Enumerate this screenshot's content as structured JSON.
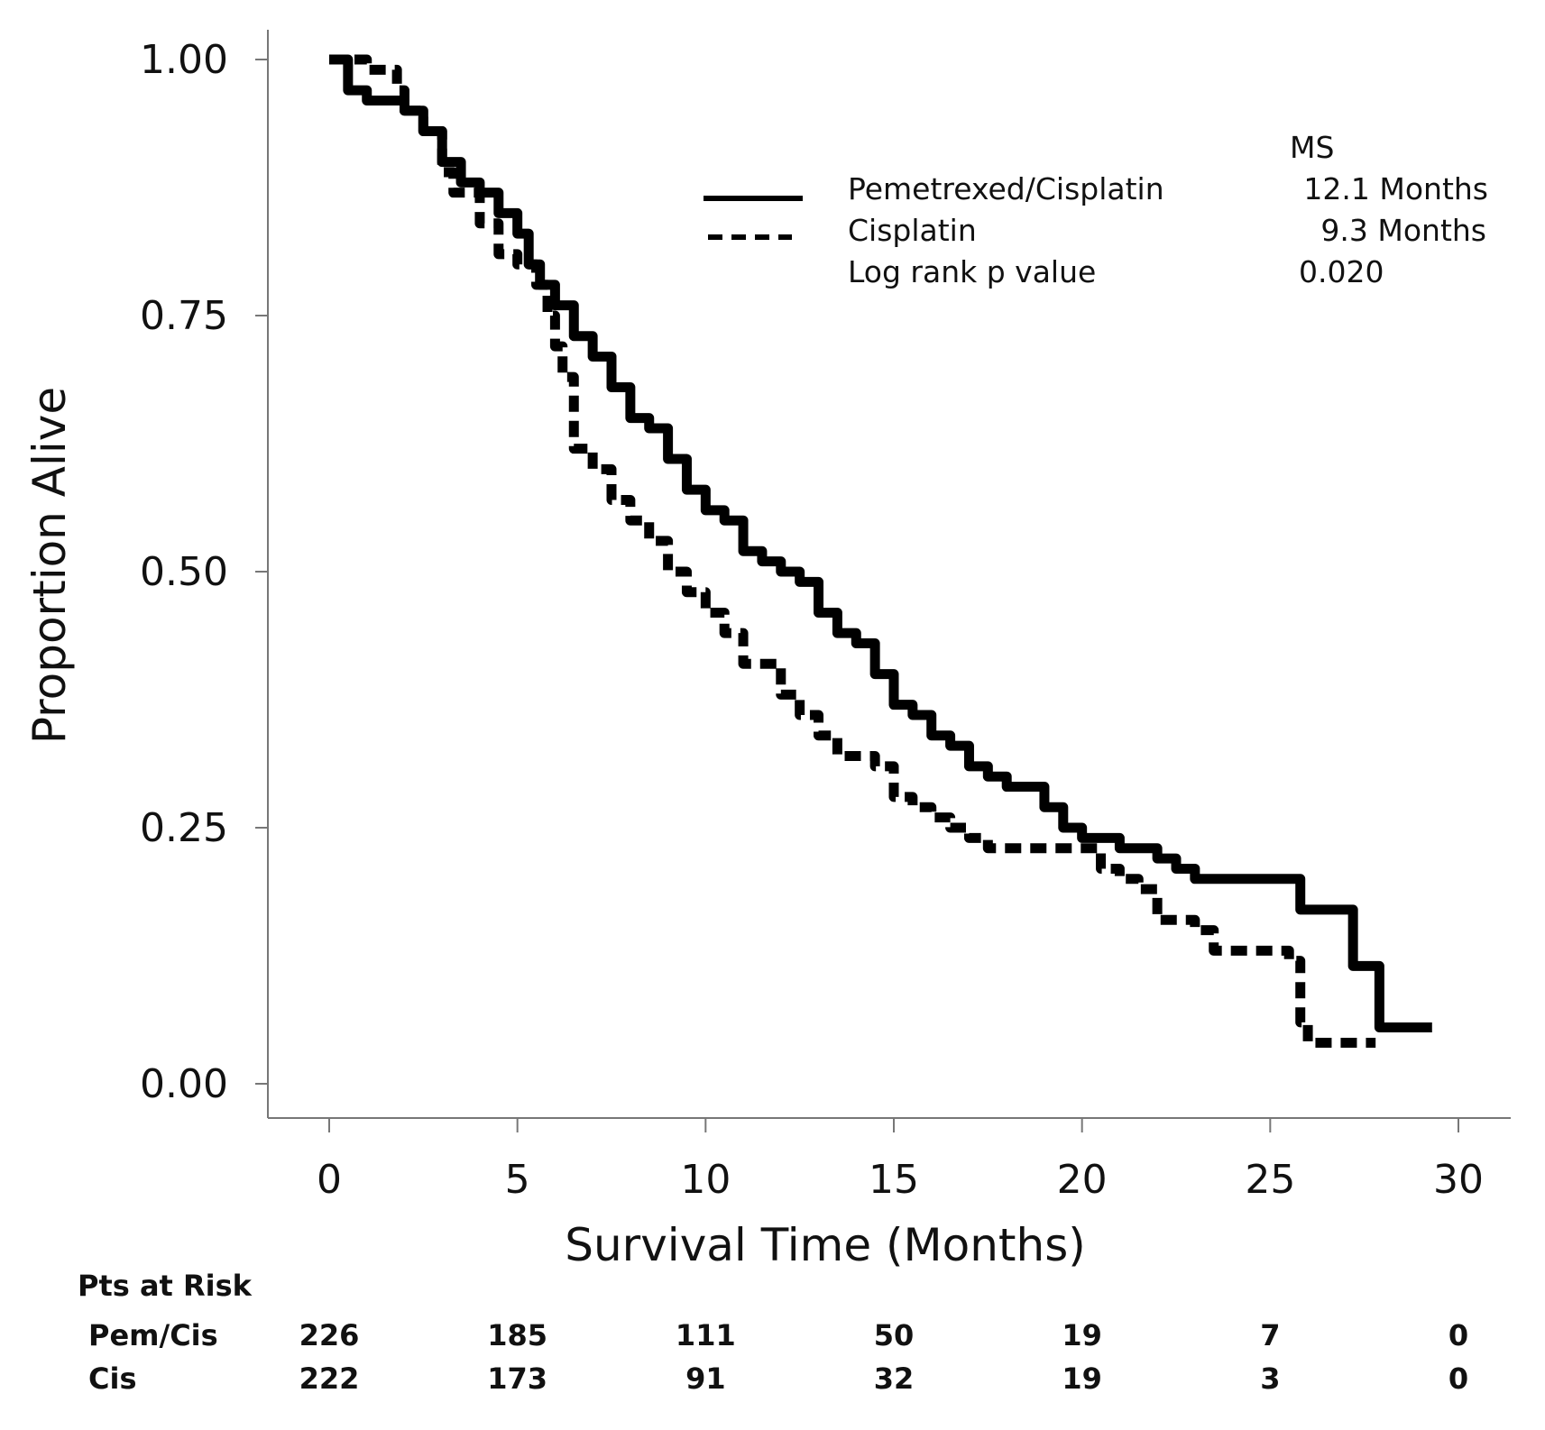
{
  "chart_data": {
    "type": "line",
    "title": "",
    "xlabel": "Survival Time (Months)",
    "ylabel": "Proportion Alive",
    "xlim": [
      0,
      30
    ],
    "ylim": [
      0,
      1
    ],
    "x_ticks": [
      "0",
      "5",
      "10",
      "15",
      "20",
      "25",
      "30"
    ],
    "x_tick_values": [
      0,
      5,
      10,
      15,
      20,
      25,
      30
    ],
    "y_ticks": [
      "0.00",
      "0.25",
      "0.50",
      "0.75",
      "1.00"
    ],
    "y_tick_values": [
      0,
      0.25,
      0.5,
      0.75,
      1.0
    ],
    "grid": false,
    "legend_placement": "top-right",
    "legend": {
      "header": "MS",
      "entries": [
        {
          "label": "Pemetrexed/Cisplatin",
          "value": "12.1 Months",
          "style": "solid"
        },
        {
          "label": "Cisplatin",
          "value": "9.3 Months",
          "style": "dashed"
        },
        {
          "label": "Log rank p value",
          "value": "0.020",
          "style": "none"
        }
      ]
    },
    "series": [
      {
        "name": "Pemetrexed/Cisplatin",
        "style": "solid",
        "color": "#000000",
        "x": [
          0,
          0.5,
          1,
          2,
          2.5,
          3,
          3.5,
          4,
          4.5,
          5,
          5.3,
          5.6,
          6,
          6.5,
          7,
          7.5,
          8,
          8.5,
          9,
          9.5,
          10,
          10.5,
          11,
          11.5,
          12,
          12.5,
          13,
          13.5,
          14,
          14.5,
          15,
          15.5,
          16,
          16.5,
          17,
          17.5,
          18,
          18.5,
          19,
          19.5,
          20,
          21,
          22,
          22.5,
          23,
          25.8,
          27.2,
          27.9,
          29.3
        ],
        "y": [
          1.0,
          0.97,
          0.96,
          0.95,
          0.93,
          0.9,
          0.88,
          0.87,
          0.85,
          0.83,
          0.8,
          0.78,
          0.76,
          0.73,
          0.71,
          0.68,
          0.65,
          0.64,
          0.61,
          0.58,
          0.56,
          0.55,
          0.52,
          0.51,
          0.5,
          0.49,
          0.46,
          0.44,
          0.43,
          0.4,
          0.37,
          0.36,
          0.34,
          0.33,
          0.31,
          0.3,
          0.29,
          0.29,
          0.27,
          0.25,
          0.24,
          0.23,
          0.22,
          0.21,
          0.2,
          0.17,
          0.115,
          0.055,
          0.055
        ]
      },
      {
        "name": "Cisplatin",
        "style": "dashed",
        "color": "#000000",
        "x": [
          0,
          1,
          1.8,
          2,
          2.5,
          3,
          3.3,
          4,
          4.5,
          5,
          5.5,
          5.8,
          6,
          6.2,
          6.5,
          7,
          7.5,
          8,
          8.5,
          9,
          9.5,
          10,
          10.5,
          11,
          11.5,
          12,
          12.5,
          13,
          13.5,
          14.5,
          15,
          15.5,
          16,
          16.5,
          17,
          17.5,
          20,
          20.5,
          21,
          21.5,
          22,
          23,
          23.5,
          25.5,
          25.8,
          26,
          27.8
        ],
        "y": [
          1.0,
          0.99,
          0.97,
          0.95,
          0.93,
          0.89,
          0.87,
          0.84,
          0.81,
          0.8,
          0.78,
          0.75,
          0.72,
          0.69,
          0.62,
          0.6,
          0.57,
          0.55,
          0.53,
          0.5,
          0.48,
          0.46,
          0.44,
          0.41,
          0.41,
          0.38,
          0.36,
          0.34,
          0.32,
          0.31,
          0.28,
          0.27,
          0.26,
          0.25,
          0.24,
          0.23,
          0.23,
          0.21,
          0.2,
          0.19,
          0.16,
          0.15,
          0.13,
          0.12,
          0.06,
          0.04,
          0.04
        ]
      }
    ],
    "risk_table": {
      "title": "Pts at Risk",
      "rows": [
        {
          "label": "Pem/Cis",
          "values": [
            "226",
            "185",
            "111",
            "50",
            "19",
            "7",
            "0"
          ]
        },
        {
          "label": "Cis",
          "values": [
            "222",
            "173",
            "91",
            "32",
            "19",
            "3",
            "0"
          ]
        }
      ]
    }
  }
}
